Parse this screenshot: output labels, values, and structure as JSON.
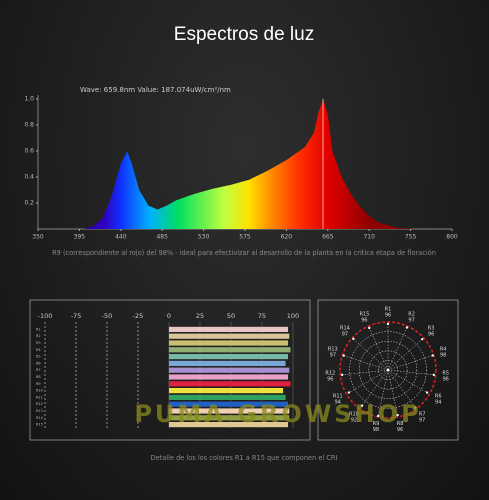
{
  "title": "Espectros de luz",
  "caption_spectrum": "R9 (correspondiente al rojo) del 98% - ideal para efectivizar al desarrollo de la planta en la crítica etapa de floración",
  "caption_cri": "Detalle de los los colores R1 a R15 que componen el CRI",
  "watermark": "PUMA GROWSHOP",
  "chart_data": [
    {
      "type": "area",
      "readout": "Wave: 659.8nm Value: 187.074uW/cm²/nm",
      "cursor_x": 659.8,
      "x": [
        400,
        410,
        420,
        430,
        440,
        447,
        452,
        460,
        470,
        480,
        490,
        500,
        520,
        540,
        560,
        580,
        600,
        620,
        640,
        650,
        655,
        660,
        665,
        670,
        680,
        690,
        700,
        710,
        720,
        740,
        760
      ],
      "values": [
        0,
        0.02,
        0.08,
        0.25,
        0.5,
        0.6,
        0.5,
        0.3,
        0.18,
        0.15,
        0.18,
        0.22,
        0.27,
        0.31,
        0.34,
        0.38,
        0.45,
        0.53,
        0.63,
        0.74,
        0.9,
        1.0,
        0.88,
        0.6,
        0.4,
        0.27,
        0.17,
        0.1,
        0.05,
        0.01,
        0
      ],
      "xlim": [
        350,
        800
      ],
      "xticks": [
        350,
        395,
        440,
        485,
        530,
        575,
        620,
        665,
        710,
        755,
        800
      ],
      "ylim": [
        0,
        1
      ],
      "yticks": [
        {
          "value": 0.2,
          "label": "0.2"
        },
        {
          "value": 0.4,
          "label": "0.4"
        },
        {
          "value": 0.6,
          "label": "0.6"
        },
        {
          "value": 0.8,
          "label": "0.8"
        },
        {
          "value": 1,
          "label": "1.0"
        }
      ]
    },
    {
      "type": "hbar",
      "categories": [
        "R1",
        "R2",
        "R3",
        "R4",
        "R5",
        "R6",
        "R7",
        "R8",
        "R9",
        "R10",
        "R11",
        "R12",
        "R13",
        "R14",
        "R15"
      ],
      "values": [
        96,
        97,
        96,
        98,
        96,
        94,
        97,
        96,
        98,
        92,
        94,
        96,
        97,
        97,
        96
      ],
      "colors": [
        "#e8c4c4",
        "#d9c49a",
        "#c8c070",
        "#8fb070",
        "#78b8a8",
        "#78a8d8",
        "#a890d0",
        "#e8a0c8",
        "#e02040",
        "#f0e040",
        "#30a060",
        "#2060c0",
        "#f0d0b0",
        "#90a040",
        "#e0c890"
      ],
      "xlim": [
        -100,
        100
      ],
      "xticks": [
        -100,
        -75,
        -50,
        -25,
        0,
        25,
        50,
        75,
        100
      ]
    },
    {
      "type": "polar",
      "rlim": [
        0,
        100
      ]
    }
  ]
}
